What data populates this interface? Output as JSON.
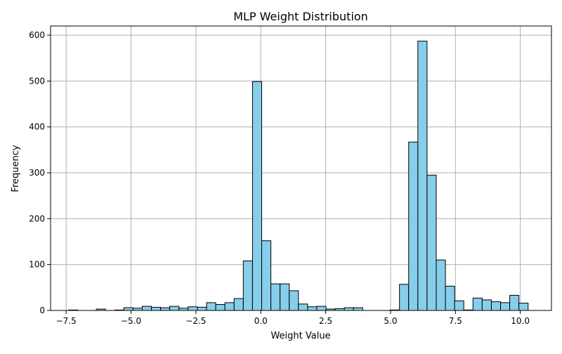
{
  "chart_data": {
    "type": "histogram",
    "title": "MLP Weight Distribution",
    "xlabel": "Weight Value",
    "ylabel": "Frequency",
    "xlim": [
      -8.1,
      11.2
    ],
    "ylim": [
      0,
      620
    ],
    "xticks": [
      -7.5,
      -5.0,
      -2.5,
      0.0,
      2.5,
      5.0,
      7.5,
      10.0
    ],
    "xtick_labels": [
      "−7.5",
      "−5.0",
      "−2.5",
      "0.0",
      "2.5",
      "5.0",
      "7.5",
      "10.0"
    ],
    "yticks": [
      0,
      100,
      200,
      300,
      400,
      500,
      600
    ],
    "ytick_labels": [
      "0",
      "100",
      "200",
      "300",
      "400",
      "500",
      "600"
    ],
    "grid": true,
    "bin_start": -7.4,
    "bin_width": 0.354,
    "values": [
      1,
      0,
      0,
      3,
      0,
      1,
      6,
      5,
      9,
      7,
      6,
      9,
      5,
      8,
      7,
      17,
      13,
      17,
      26,
      108,
      499,
      152,
      58,
      58,
      43,
      14,
      8,
      9,
      3,
      4,
      6,
      6,
      0,
      0,
      0,
      1,
      57,
      367,
      587,
      295,
      110,
      53,
      21,
      1,
      27,
      23,
      19,
      17,
      33,
      16
    ],
    "bar_color": "#87ceeb",
    "edge_color": "#000000"
  }
}
